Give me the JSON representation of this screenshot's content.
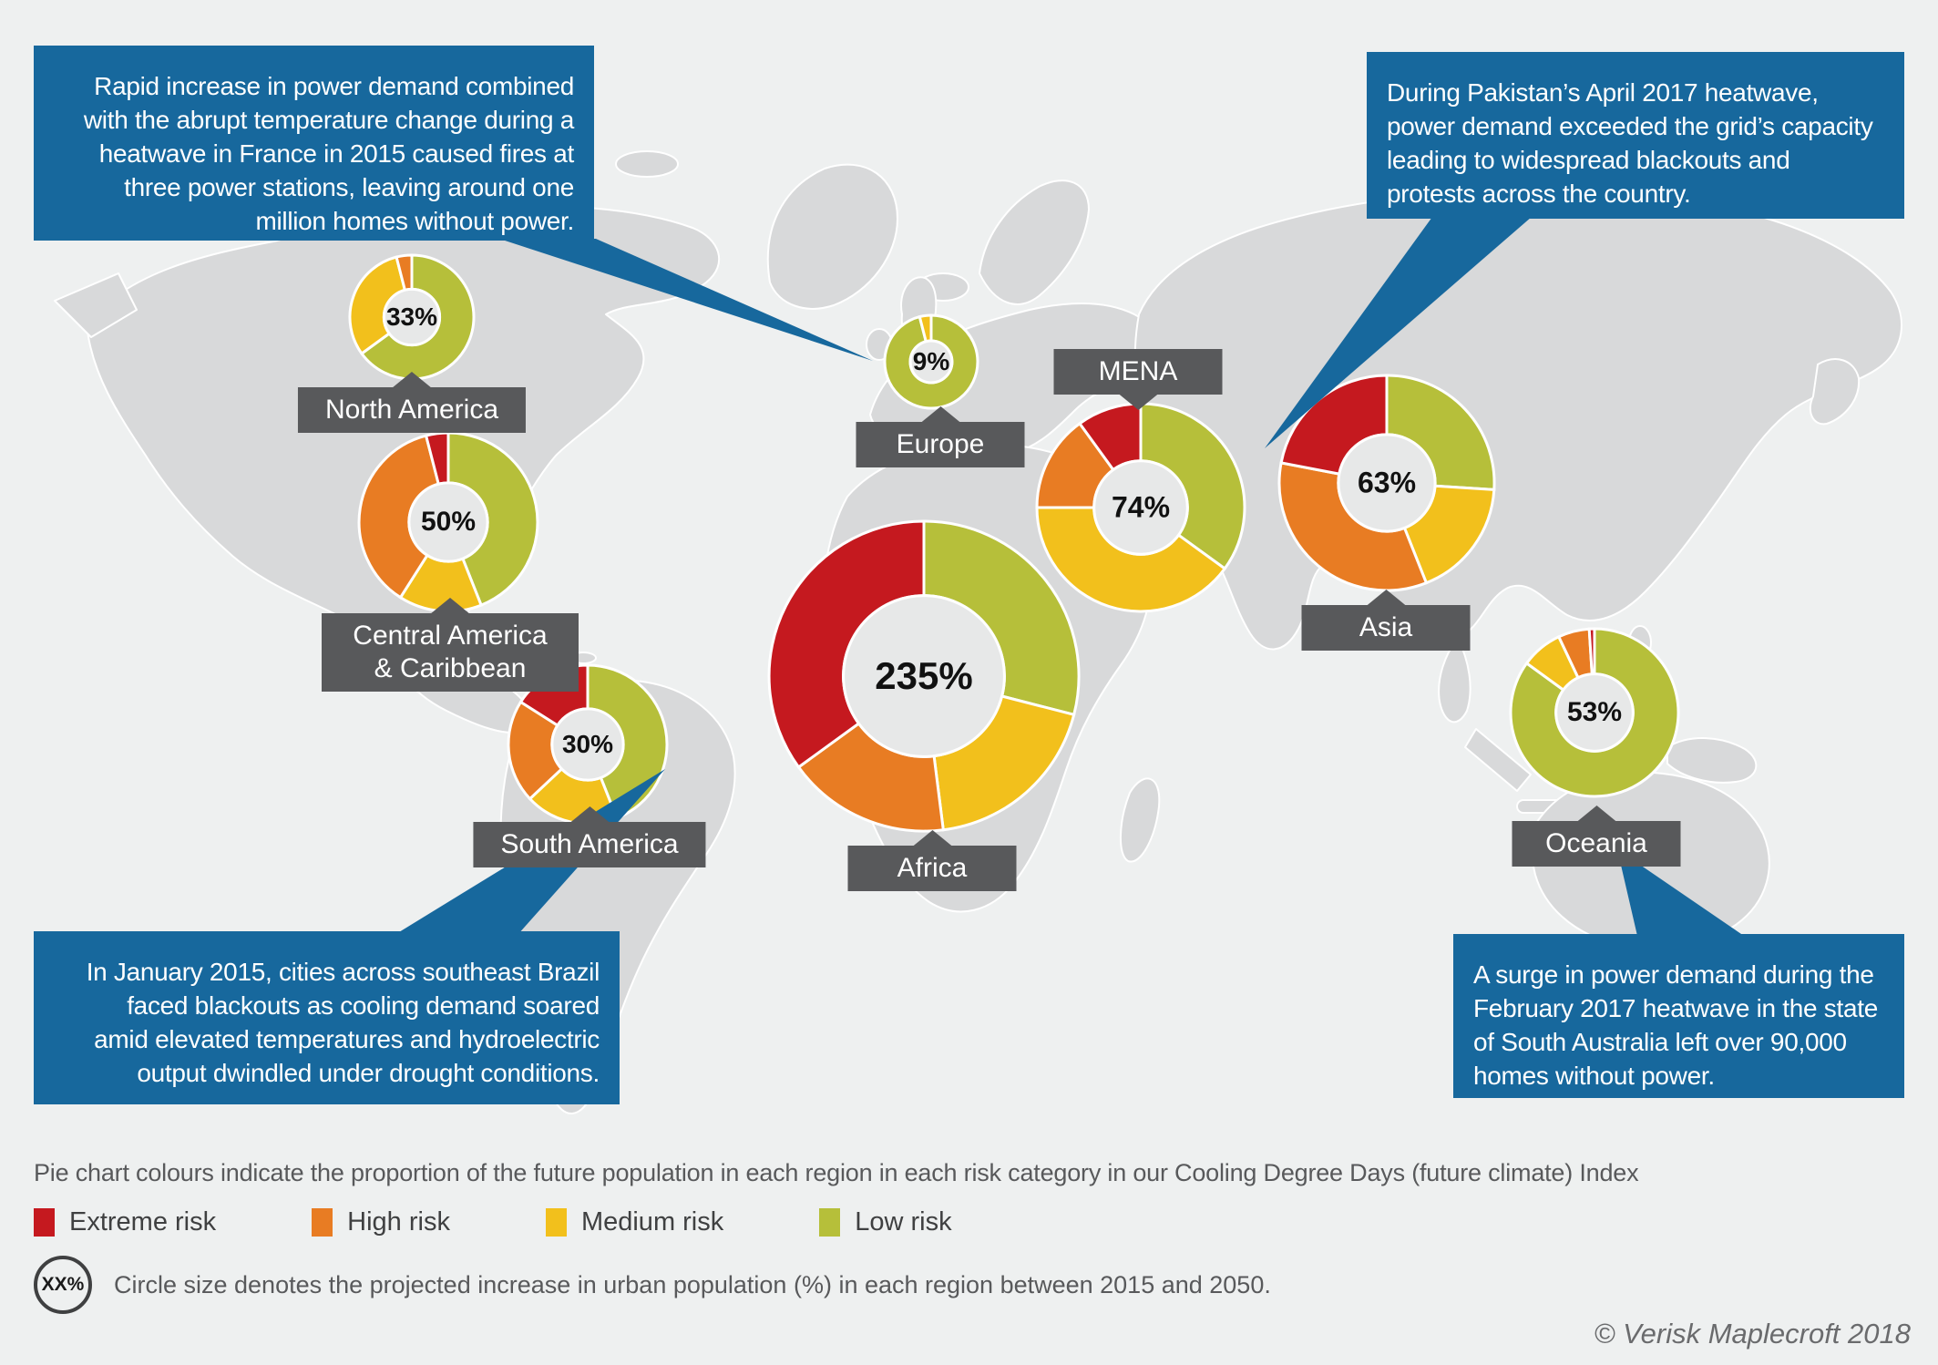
{
  "legend": {
    "note": "Pie chart colours indicate the proportion of the future population in each region in each risk category in our Cooling Degree Days (future climate) Index",
    "items": [
      {
        "key": "extreme",
        "label": "Extreme risk",
        "color": "#c5191f"
      },
      {
        "key": "high",
        "label": "High risk",
        "color": "#e87c23"
      },
      {
        "key": "medium",
        "label": "Medium risk",
        "color": "#f2c01c"
      },
      {
        "key": "low",
        "label": "Low risk",
        "color": "#b6bf3a"
      }
    ],
    "circle_icon_label": "XX%",
    "circle_note": "Circle size denotes the projected increase in urban population (%) in each region between 2015 and 2050."
  },
  "copyright": "© Verisk Maplecroft 2018",
  "callouts": [
    {
      "id": "france",
      "text": "Rapid increase in power demand combined\nwith the abrupt temperature change during a\nheatwave in France in 2015 caused fires at\nthree power stations, leaving around one\nmillion homes without power."
    },
    {
      "id": "pakistan",
      "text": "During Pakistan’s April 2017 heatwave,\npower demand exceeded the grid’s capacity\nleading to widespread blackouts and\nprotests across the country."
    },
    {
      "id": "brazil",
      "text": "In January 2015, cities across southeast Brazil\nfaced blackouts as cooling demand soared\namid elevated temperatures and hydroelectric\noutput dwindled under drought conditions."
    },
    {
      "id": "australia",
      "text": "A surge in power demand during the\nFebruary 2017 heatwave in the state\nof South Australia left over 90,000\nhomes without power."
    }
  ],
  "chart_data": {
    "type": "pie",
    "title": "Cooling Degree Days (future climate) Index — regional donut charts on world map",
    "legend_position": "bottom",
    "risk_categories": [
      "Low risk",
      "Medium risk",
      "High risk",
      "Extreme risk"
    ],
    "center_value_meaning": "Projected increase in urban population (%) in each region between 2015 and 2050",
    "slice_meaning": "Proportion of the future population in each region in each risk category",
    "regions": [
      {
        "name": "North America",
        "urban_increase_pct": "33%",
        "shares": {
          "low": 65,
          "medium": 31,
          "high": 4,
          "extreme": 0
        }
      },
      {
        "name": "Central America & Caribbean",
        "urban_increase_pct": "50%",
        "shares": {
          "low": 44,
          "medium": 15,
          "high": 37,
          "extreme": 4
        }
      },
      {
        "name": "South America",
        "urban_increase_pct": "30%",
        "shares": {
          "low": 44,
          "medium": 19,
          "high": 21,
          "extreme": 16
        }
      },
      {
        "name": "Europe",
        "urban_increase_pct": "9%",
        "shares": {
          "low": 96,
          "medium": 4,
          "high": 0,
          "extreme": 0
        }
      },
      {
        "name": "Africa",
        "urban_increase_pct": "235%",
        "shares": {
          "low": 29,
          "medium": 19,
          "high": 17,
          "extreme": 35
        }
      },
      {
        "name": "MENA",
        "urban_increase_pct": "74%",
        "shares": {
          "low": 35,
          "medium": 40,
          "high": 15,
          "extreme": 10
        }
      },
      {
        "name": "Asia",
        "urban_increase_pct": "63%",
        "shares": {
          "low": 26,
          "medium": 18,
          "high": 34,
          "extreme": 22
        }
      },
      {
        "name": "Oceania",
        "urban_increase_pct": "53%",
        "shares": {
          "low": 85,
          "medium": 8,
          "high": 6,
          "extreme": 1
        }
      }
    ]
  }
}
